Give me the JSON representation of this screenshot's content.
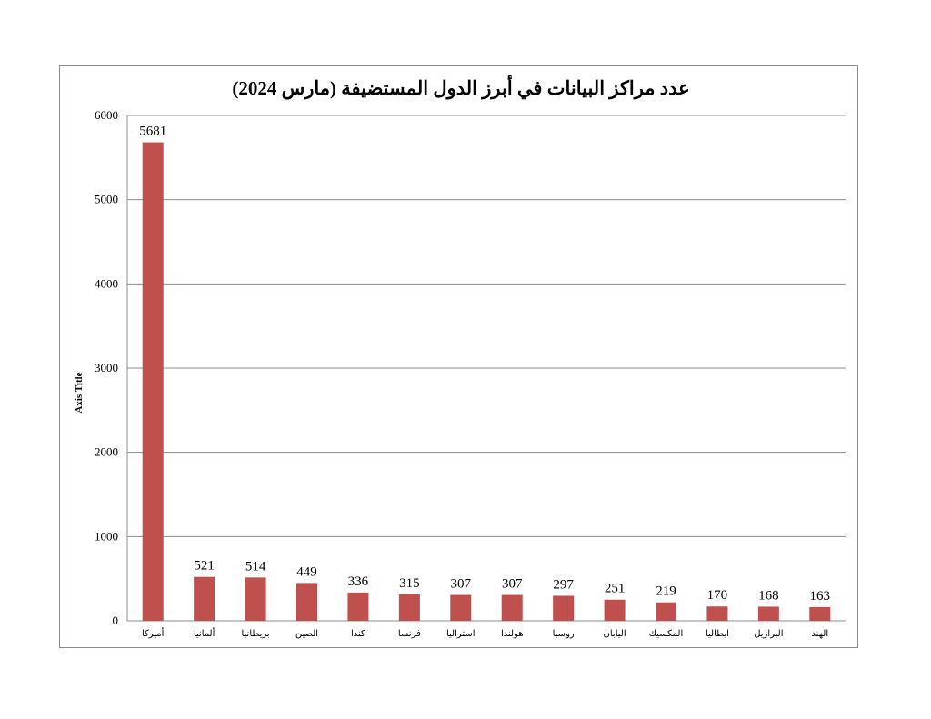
{
  "chart_data": {
    "type": "bar",
    "title": "عدد مراكز البيانات في أبرز الدول المستضيفة (مارس 2024)",
    "ylabel": "Axis Title",
    "xlabel": "",
    "ylim": [
      0,
      6000
    ],
    "yticks": [
      0,
      1000,
      2000,
      3000,
      4000,
      5000,
      6000
    ],
    "grid": true,
    "legend": "none",
    "bar_color": "#c0504d",
    "categories": [
      "أميركا",
      "ألمانيا",
      "بريطانيا",
      "الصين",
      "كندا",
      "فرنسا",
      "استراليا",
      "هولندا",
      "روسيا",
      "اليابان",
      "المكسيك",
      "ايطاليا",
      "البرازيل",
      "الهند"
    ],
    "values": [
      5681,
      521,
      514,
      449,
      336,
      315,
      307,
      307,
      297,
      251,
      219,
      170,
      168,
      163
    ]
  }
}
